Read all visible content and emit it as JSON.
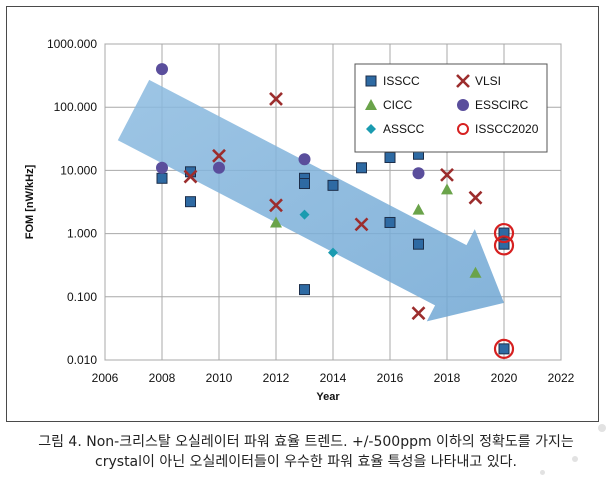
{
  "chart_data": {
    "type": "scatter",
    "title": "",
    "xlabel": "Year",
    "ylabel": "FOM [nW/kHz]",
    "xlim": [
      2006,
      2022
    ],
    "ylim": [
      0.01,
      1000
    ],
    "yscale": "log",
    "x_ticks": [
      "2006",
      "2008",
      "2010",
      "2012",
      "2014",
      "2016",
      "2018",
      "2020",
      "2022"
    ],
    "y_ticks": [
      "1000.000",
      "100.000",
      "10.000",
      "1.000",
      "0.100",
      "0.010"
    ],
    "grid": true,
    "legend_position": "top-right",
    "trend_arrow": {
      "from": [
        2007,
        90
      ],
      "to": [
        2020,
        0.08
      ],
      "color": "#7aaed6"
    },
    "series": [
      {
        "name": "ISSCC",
        "marker": "square",
        "color": "#2e6aa3",
        "points": [
          [
            2008,
            7.5
          ],
          [
            2009,
            9.5
          ],
          [
            2009,
            3.2
          ],
          [
            2013,
            7.5
          ],
          [
            2013,
            6.2
          ],
          [
            2013,
            0.13
          ],
          [
            2014,
            5.8
          ],
          [
            2015,
            11
          ],
          [
            2016,
            21
          ],
          [
            2016,
            16
          ],
          [
            2016,
            1.5
          ],
          [
            2017,
            18
          ],
          [
            2017,
            0.68
          ],
          [
            2020,
            1.02
          ],
          [
            2020,
            0.68
          ],
          [
            2020,
            0.015
          ]
        ]
      },
      {
        "name": "VLSI",
        "marker": "x",
        "color": "#9c2d2d",
        "points": [
          [
            2009,
            8
          ],
          [
            2010,
            17
          ],
          [
            2012,
            135
          ],
          [
            2012,
            2.8
          ],
          [
            2015,
            1.4
          ],
          [
            2017,
            0.055
          ],
          [
            2018,
            8.5
          ],
          [
            2019,
            3.7
          ]
        ]
      },
      {
        "name": "CICC",
        "marker": "triangle",
        "color": "#6aa34a",
        "points": [
          [
            2012,
            1.5
          ],
          [
            2017,
            2.4
          ],
          [
            2018,
            5
          ],
          [
            2019,
            0.24
          ]
        ]
      },
      {
        "name": "ESSCIRC",
        "marker": "circle",
        "color": "#5a4e9c",
        "points": [
          [
            2008,
            400
          ],
          [
            2008,
            11
          ],
          [
            2010,
            11
          ],
          [
            2013,
            15
          ],
          [
            2017,
            9
          ]
        ]
      },
      {
        "name": "ASSCC",
        "marker": "diamond",
        "color": "#1a9bb0",
        "points": [
          [
            2013,
            2
          ],
          [
            2014,
            0.5
          ]
        ]
      },
      {
        "name": "ISSCC2020",
        "marker": "open-circle",
        "color": "#d62020",
        "points": [
          [
            2020,
            1.02
          ],
          [
            2020,
            0.65
          ],
          [
            2020,
            0.015
          ]
        ]
      }
    ]
  },
  "caption": {
    "line1": "그림 4. Non-크리스탈 오실레이터 파워 효율 트렌드. +/-500ppm 이하의 정확도를 가지는",
    "line2": "crystal이 아닌 오실레이터들이 우수한 파워 효율 특성을 나타내고 있다."
  }
}
